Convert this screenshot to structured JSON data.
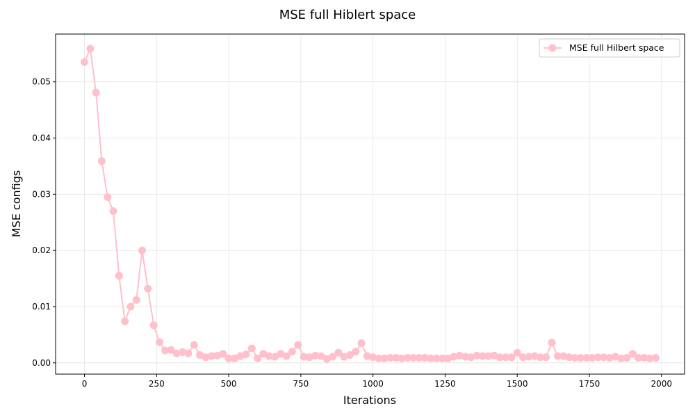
{
  "chart_data": {
    "type": "line",
    "title": "MSE full Hiblert space",
    "xlabel": "Iterations",
    "ylabel": "MSE configs",
    "xlim": [
      -100,
      2080
    ],
    "ylim": [
      -0.002,
      0.0585
    ],
    "xticks": [
      0,
      250,
      500,
      750,
      1000,
      1250,
      1500,
      1750,
      2000
    ],
    "yticks": [
      0.0,
      0.01,
      0.02,
      0.03,
      0.04,
      0.05
    ],
    "xtick_labels": [
      "0",
      "250",
      "500",
      "750",
      "1000",
      "1250",
      "1500",
      "1750",
      "2000"
    ],
    "ytick_labels": [
      "0.00",
      "0.01",
      "0.02",
      "0.03",
      "0.04",
      "0.05"
    ],
    "grid": true,
    "legend_position": "top-right",
    "series": [
      {
        "name": "MSE full Hilbert space",
        "color": "#ffc0cb",
        "marker": "circle",
        "x": [
          0,
          20,
          40,
          60,
          80,
          100,
          120,
          140,
          160,
          180,
          200,
          220,
          240,
          260,
          280,
          300,
          320,
          340,
          360,
          380,
          400,
          420,
          440,
          460,
          480,
          500,
          520,
          540,
          560,
          580,
          600,
          620,
          640,
          660,
          680,
          700,
          720,
          740,
          760,
          780,
          800,
          820,
          840,
          860,
          880,
          900,
          920,
          940,
          960,
          980,
          1000,
          1020,
          1040,
          1060,
          1080,
          1100,
          1120,
          1140,
          1160,
          1180,
          1200,
          1220,
          1240,
          1260,
          1280,
          1300,
          1320,
          1340,
          1360,
          1380,
          1400,
          1420,
          1440,
          1460,
          1480,
          1500,
          1520,
          1540,
          1560,
          1580,
          1600,
          1620,
          1640,
          1660,
          1680,
          1700,
          1720,
          1740,
          1760,
          1780,
          1800,
          1820,
          1840,
          1860,
          1880,
          1900,
          1920,
          1940,
          1960,
          1980
        ],
        "values": [
          0.0535,
          0.0559,
          0.0481,
          0.0359,
          0.0295,
          0.027,
          0.0155,
          0.0074,
          0.01,
          0.0112,
          0.02,
          0.0132,
          0.0067,
          0.0037,
          0.0022,
          0.0023,
          0.0017,
          0.0019,
          0.0017,
          0.0032,
          0.0014,
          0.001,
          0.0012,
          0.0013,
          0.0016,
          0.0008,
          0.0008,
          0.0012,
          0.0015,
          0.0026,
          0.0008,
          0.0016,
          0.0012,
          0.0011,
          0.0016,
          0.0012,
          0.002,
          0.0032,
          0.0011,
          0.001,
          0.0013,
          0.0012,
          0.0007,
          0.0011,
          0.0018,
          0.0011,
          0.0014,
          0.002,
          0.0035,
          0.0012,
          0.001,
          0.0008,
          0.0008,
          0.0009,
          0.0009,
          0.0008,
          0.0009,
          0.0009,
          0.0009,
          0.0009,
          0.0008,
          0.0008,
          0.0008,
          0.0008,
          0.0011,
          0.0013,
          0.0011,
          0.001,
          0.0013,
          0.0012,
          0.0012,
          0.0013,
          0.001,
          0.001,
          0.001,
          0.0018,
          0.001,
          0.0011,
          0.0012,
          0.001,
          0.001,
          0.0036,
          0.0012,
          0.0012,
          0.001,
          0.0009,
          0.0009,
          0.0009,
          0.0009,
          0.001,
          0.001,
          0.0009,
          0.0011,
          0.0008,
          0.0009,
          0.0016,
          0.0009,
          0.0009,
          0.0008,
          0.0009
        ]
      }
    ]
  }
}
